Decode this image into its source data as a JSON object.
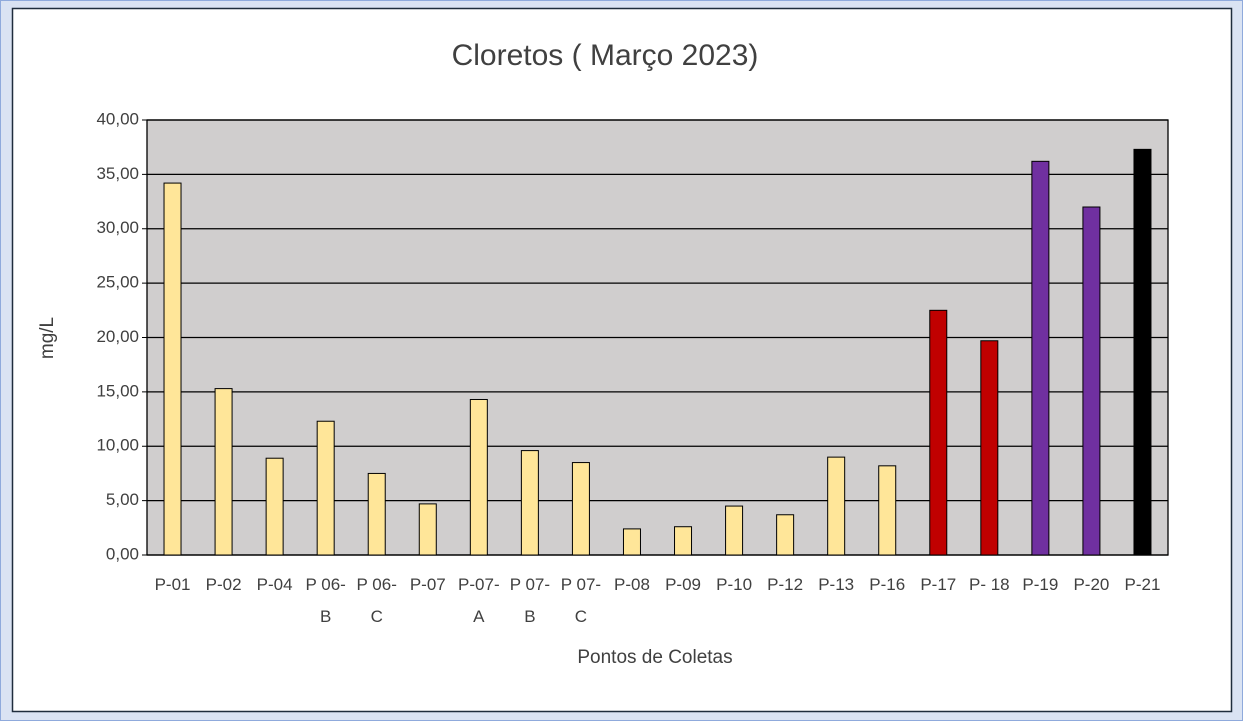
{
  "chart_data": {
    "type": "bar",
    "title": "Cloretos ( Março 2023)",
    "x_label": "Pontos de Coletas",
    "y_label": "mg/L",
    "categories": [
      "P-01",
      "P-02",
      "P-04",
      "P 06-B",
      "P 06-C",
      "P-07",
      "P-07-A",
      "P 07-B",
      "P 07-C",
      "P-08",
      "P-09",
      "P-10",
      "P-12",
      "P-13",
      "P-16",
      "P-17",
      "P- 18",
      "P-19",
      "P-20",
      "P-21"
    ],
    "values": [
      34.2,
      15.3,
      8.9,
      12.3,
      7.5,
      4.7,
      14.3,
      9.6,
      8.5,
      2.4,
      2.6,
      4.5,
      3.7,
      9.0,
      8.2,
      22.5,
      19.7,
      36.2,
      32.0,
      37.3
    ],
    "colors": [
      "#ffe699",
      "#ffe699",
      "#ffe699",
      "#ffe699",
      "#ffe699",
      "#ffe699",
      "#ffe699",
      "#ffe699",
      "#ffe699",
      "#ffe699",
      "#ffe699",
      "#ffe699",
      "#ffe699",
      "#ffe699",
      "#ffe699",
      "#c00000",
      "#c00000",
      "#7030a0",
      "#7030a0",
      "#000000"
    ],
    "ylim": [
      0,
      40
    ],
    "yticks": [
      {
        "value": 0,
        "label": "0,00"
      },
      {
        "value": 5,
        "label": "5,00"
      },
      {
        "value": 10,
        "label": "10,00"
      },
      {
        "value": 15,
        "label": "15,00"
      },
      {
        "value": 20,
        "label": "20,00"
      },
      {
        "value": 25,
        "label": "25,00"
      },
      {
        "value": 30,
        "label": "30,00"
      },
      {
        "value": 35,
        "label": "35,00"
      },
      {
        "value": 40,
        "label": "40,00"
      }
    ],
    "grid": true
  }
}
